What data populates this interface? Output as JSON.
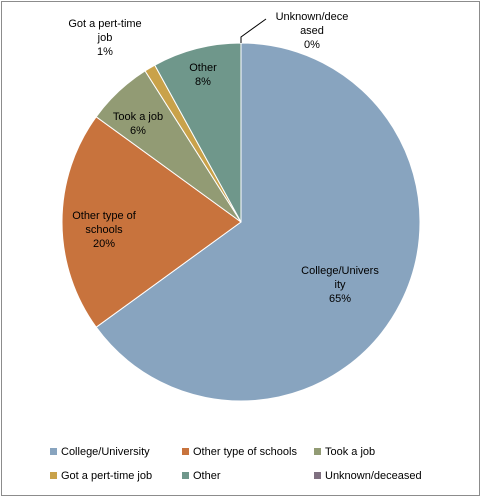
{
  "chart_data": {
    "type": "pie",
    "legend_position": "bottom",
    "slices": [
      {
        "name": "College/University",
        "value": 65,
        "display": "65%",
        "label_lines": [
          "College/Univers",
          "ity",
          "65%"
        ],
        "color": "#88a4bf"
      },
      {
        "name": "Other type of schools",
        "value": 20,
        "display": "20%",
        "label_lines": [
          "Other type of",
          "schools",
          "20%"
        ],
        "color": "#c8733d"
      },
      {
        "name": "Took a job",
        "value": 6,
        "display": "6%",
        "label_lines": [
          "Took a job",
          "6%"
        ],
        "color": "#929b74"
      },
      {
        "name": "Got a pert-time job",
        "value": 1,
        "display": "1%",
        "label_lines": [
          "Got a pert-time",
          "job",
          "1%"
        ],
        "color": "#c9a24a"
      },
      {
        "name": "Other",
        "value": 8,
        "display": "8%",
        "label_lines": [
          "Other",
          "8%"
        ],
        "color": "#6f978b"
      },
      {
        "name": "Unknown/deceased",
        "value": 0,
        "display": "0%",
        "label_lines": [
          "Unknown/dece",
          "ased",
          "0%"
        ],
        "color": "#7f7080"
      }
    ]
  }
}
